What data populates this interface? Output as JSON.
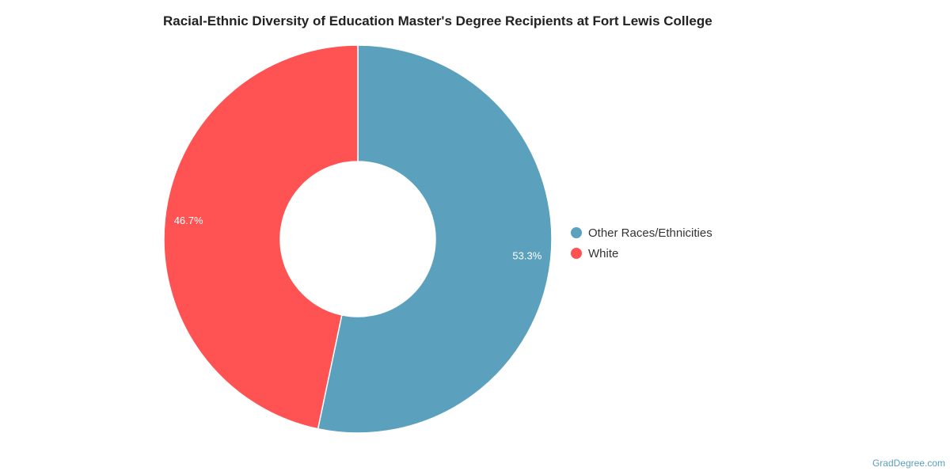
{
  "chart_data": {
    "type": "pie",
    "title": "Racial-Ethnic Diversity of Education Master's Degree Recipients at Fort Lewis College",
    "donut": true,
    "start_angle_deg": 0,
    "legend_position": "right",
    "slices": [
      {
        "name": "Other Races/Ethnicities",
        "value": 53.3,
        "label": "53.3%",
        "color": "#5ba1be"
      },
      {
        "name": "White",
        "value": 46.7,
        "label": "46.7%",
        "color": "#ff5252"
      }
    ]
  },
  "credit": "GradDegree.com"
}
